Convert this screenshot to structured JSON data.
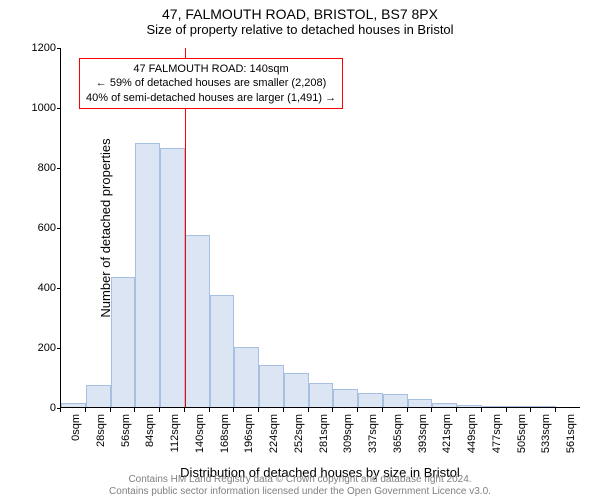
{
  "title_line1": "47, FALMOUTH ROAD, BRISTOL, BS7 8PX",
  "title_line2": "Size of property relative to detached houses in Bristol",
  "ylabel": "Number of detached properties",
  "xlabel": "Distribution of detached houses by size in Bristol",
  "chart": {
    "type": "histogram",
    "ylim": [
      0,
      1200
    ],
    "ytick_step": 200,
    "x_categories": [
      "0sqm",
      "28sqm",
      "56sqm",
      "84sqm",
      "112sqm",
      "140sqm",
      "168sqm",
      "196sqm",
      "224sqm",
      "252sqm",
      "281sqm",
      "309sqm",
      "337sqm",
      "365sqm",
      "393sqm",
      "421sqm",
      "449sqm",
      "477sqm",
      "505sqm",
      "533sqm",
      "561sqm"
    ],
    "values": [
      13,
      75,
      435,
      880,
      865,
      575,
      375,
      200,
      140,
      115,
      80,
      60,
      48,
      42,
      28,
      15,
      8,
      5,
      4,
      3
    ],
    "bar_fill": "#dbe5f4",
    "bar_border": "#a7bfe0",
    "bar_border_width": 1,
    "background_color": "#ffffff",
    "axis_color": "#000000",
    "reference_line": {
      "x_index": 5,
      "color": "#ff0000",
      "width": 1.5
    }
  },
  "annotation": {
    "line1": "47 FALMOUTH ROAD: 140sqm",
    "line2": "← 59% of detached houses are smaller (2,208)",
    "line3": "40% of semi-detached houses are larger (1,491) →",
    "border_color": "#ff0000",
    "background_color": "#ffffff",
    "font_size": 11
  },
  "attribution": {
    "line1": "Contains HM Land Registry data © Crown copyright and database right 2024.",
    "line2": "Contains public sector information licensed under the Open Government Licence v3.0.",
    "color": "#808080"
  }
}
